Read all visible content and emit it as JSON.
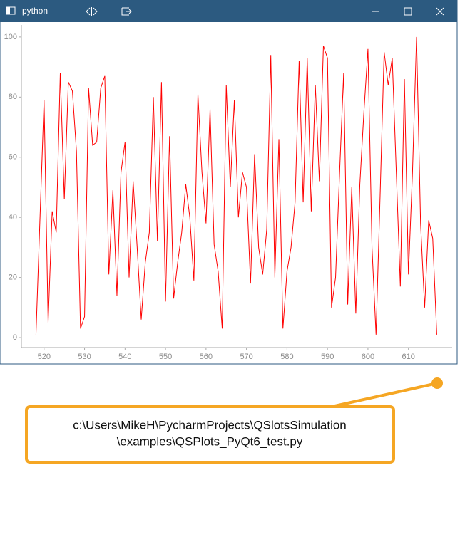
{
  "window": {
    "title": "python"
  },
  "chart_data": {
    "type": "line",
    "x": [
      518,
      519,
      520,
      521,
      522,
      523,
      524,
      525,
      526,
      527,
      528,
      529,
      530,
      531,
      532,
      533,
      534,
      535,
      536,
      537,
      538,
      539,
      540,
      541,
      542,
      543,
      544,
      545,
      546,
      547,
      548,
      549,
      550,
      551,
      552,
      553,
      554,
      555,
      556,
      557,
      558,
      559,
      560,
      561,
      562,
      563,
      564,
      565,
      566,
      567,
      568,
      569,
      570,
      571,
      572,
      573,
      574,
      575,
      576,
      577,
      578,
      579,
      580,
      581,
      582,
      583,
      584,
      585,
      586,
      587,
      588,
      589,
      590,
      591,
      592,
      593,
      594,
      595,
      596,
      597,
      598,
      599,
      600,
      601,
      602,
      603,
      604,
      605,
      606,
      607,
      608,
      609,
      610,
      611,
      612,
      613,
      614,
      615,
      616,
      617
    ],
    "series": [
      {
        "color": "#ff0000",
        "values": [
          1,
          40,
          79,
          5,
          42,
          35,
          88,
          46,
          85,
          82,
          62,
          3,
          7,
          83,
          64,
          65,
          83,
          87,
          21,
          49,
          14,
          55,
          65,
          20,
          52,
          30,
          6,
          25,
          35,
          80,
          32,
          85,
          12,
          67,
          13,
          25,
          35,
          51,
          40,
          19,
          81,
          55,
          38,
          76,
          31,
          22,
          3,
          84,
          50,
          79,
          40,
          55,
          50,
          18,
          61,
          30,
          21,
          36,
          94,
          20,
          66,
          3,
          22,
          30,
          45,
          92,
          45,
          93,
          42,
          84,
          52,
          97,
          93,
          10,
          20,
          55,
          88,
          11,
          50,
          8,
          51,
          75,
          96,
          30,
          1,
          47,
          95,
          84,
          93,
          55,
          17,
          86,
          21,
          55,
          100,
          38,
          10,
          39,
          33,
          1
        ]
      }
    ],
    "xlim": [
      514.4,
      620.8
    ],
    "ylim": [
      -3.3,
      104
    ],
    "xticks": [
      520,
      530,
      540,
      550,
      560,
      570,
      580,
      590,
      600,
      610
    ],
    "yticks": [
      0,
      20,
      40,
      60,
      80,
      100
    ]
  },
  "callout": {
    "lines": [
      "c:\\Users\\MikeH\\PycharmProjects\\QSlotsSimulation",
      "\\examples\\QSPlots_PyQt6_test.py"
    ]
  }
}
